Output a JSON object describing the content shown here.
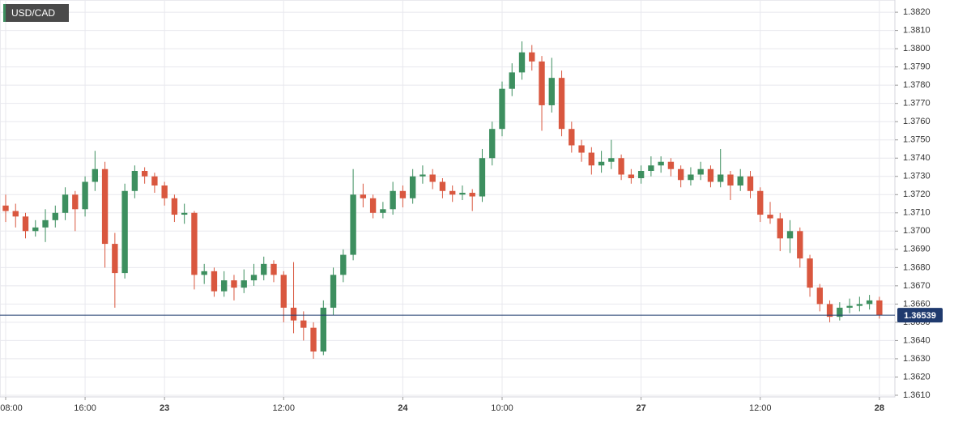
{
  "chart_data": {
    "type": "candlestick",
    "title": "USD/CAD",
    "up_color": "#3d8f5f",
    "down_color": "#d9573f",
    "last_price": 1.36539,
    "last_price_color": "#1f3a6e",
    "grid": true,
    "xlim": [
      -0.57,
      89.56
    ],
    "ylim": [
      1.36091,
      1.38267
    ],
    "xticks": [
      {
        "value": 0,
        "label": "08:00"
      },
      {
        "value": 8,
        "label": "16:00"
      },
      {
        "value": 16,
        "label": "23"
      },
      {
        "value": 28,
        "label": "12:00"
      },
      {
        "value": 40,
        "label": "24"
      },
      {
        "value": 50,
        "label": "10:00"
      },
      {
        "value": 64,
        "label": "27"
      },
      {
        "value": 76,
        "label": "12:00"
      },
      {
        "value": 88,
        "label": "28"
      }
    ],
    "yticks": [
      {
        "value": 1.361,
        "label": "1.3610"
      },
      {
        "value": 1.362,
        "label": "1.3620"
      },
      {
        "value": 1.363,
        "label": "1.3630"
      },
      {
        "value": 1.364,
        "label": "1.3640"
      },
      {
        "value": 1.365,
        "label": "1.3650"
      },
      {
        "value": 1.366,
        "label": "1.3660"
      },
      {
        "value": 1.367,
        "label": "1.3670"
      },
      {
        "value": 1.368,
        "label": "1.3680"
      },
      {
        "value": 1.369,
        "label": "1.3690"
      },
      {
        "value": 1.37,
        "label": "1.3700"
      },
      {
        "value": 1.371,
        "label": "1.3710"
      },
      {
        "value": 1.372,
        "label": "1.3720"
      },
      {
        "value": 1.373,
        "label": "1.3730"
      },
      {
        "value": 1.374,
        "label": "1.3740"
      },
      {
        "value": 1.375,
        "label": "1.3750"
      },
      {
        "value": 1.376,
        "label": "1.3760"
      },
      {
        "value": 1.377,
        "label": "1.3770"
      },
      {
        "value": 1.378,
        "label": "1.3780"
      },
      {
        "value": 1.379,
        "label": "1.3790"
      },
      {
        "value": 1.38,
        "label": "1.3800"
      },
      {
        "value": 1.381,
        "label": "1.3810"
      },
      {
        "value": 1.382,
        "label": "1.3820"
      }
    ],
    "x": [
      0,
      1,
      2,
      3,
      4,
      5,
      6,
      7,
      8,
      9,
      10,
      11,
      12,
      13,
      14,
      15,
      16,
      17,
      18,
      19,
      20,
      21,
      22,
      23,
      24,
      25,
      26,
      27,
      28,
      29,
      30,
      31,
      32,
      33,
      34,
      35,
      36,
      37,
      38,
      39,
      40,
      41,
      42,
      43,
      44,
      45,
      46,
      47,
      48,
      49,
      50,
      51,
      52,
      53,
      54,
      55,
      56,
      57,
      58,
      59,
      60,
      61,
      62,
      63,
      64,
      65,
      66,
      67,
      68,
      69,
      70,
      71,
      72,
      73,
      74,
      75,
      76,
      77,
      78,
      79,
      80,
      81,
      82,
      83,
      84,
      85,
      86,
      87,
      88
    ],
    "open": [
      1.3714,
      1.3711,
      1.3708,
      1.37,
      1.3702,
      1.3706,
      1.371,
      1.372,
      1.3712,
      1.3727,
      1.3734,
      1.3693,
      1.3677,
      1.3722,
      1.3733,
      1.373,
      1.3725,
      1.3718,
      1.3709,
      1.371,
      1.3676,
      1.3678,
      1.3667,
      1.3673,
      1.3669,
      1.3673,
      1.3676,
      1.3682,
      1.3676,
      1.3658,
      1.3651,
      1.3647,
      1.3634,
      1.3658,
      1.3676,
      1.3687,
      1.372,
      1.3718,
      1.371,
      1.3712,
      1.3722,
      1.3718,
      1.373,
      1.3731,
      1.3727,
      1.3722,
      1.372,
      1.3721,
      1.3719,
      1.374,
      1.3756,
      1.3778,
      1.3787,
      1.3798,
      1.3793,
      1.3769,
      1.3784,
      1.3756,
      1.3747,
      1.3743,
      1.3736,
      1.3738,
      1.374,
      1.3731,
      1.3729,
      1.3733,
      1.3736,
      1.3738,
      1.3734,
      1.3728,
      1.3731,
      1.3734,
      1.3727,
      1.3731,
      1.3725,
      1.373,
      1.3722,
      1.3709,
      1.3707,
      1.3696,
      1.37,
      1.3685,
      1.3669,
      1.366,
      1.3653,
      1.3658,
      1.3659,
      1.366,
      1.3662
    ],
    "high": [
      1.372,
      1.3715,
      1.371,
      1.3706,
      1.3712,
      1.3714,
      1.3724,
      1.3722,
      1.373,
      1.3744,
      1.3738,
      1.3699,
      1.3726,
      1.3736,
      1.3735,
      1.3732,
      1.3727,
      1.372,
      1.3715,
      1.3711,
      1.3682,
      1.368,
      1.3678,
      1.3676,
      1.3679,
      1.3682,
      1.3686,
      1.3684,
      1.3678,
      1.3683,
      1.3656,
      1.365,
      1.3662,
      1.368,
      1.369,
      1.3734,
      1.3726,
      1.372,
      1.3716,
      1.3727,
      1.3725,
      1.3734,
      1.3736,
      1.3734,
      1.3729,
      1.3725,
      1.3725,
      1.3723,
      1.3745,
      1.376,
      1.3782,
      1.3792,
      1.3804,
      1.3802,
      1.3796,
      1.3795,
      1.3788,
      1.376,
      1.375,
      1.3746,
      1.3744,
      1.375,
      1.3742,
      1.3734,
      1.3736,
      1.3741,
      1.3741,
      1.374,
      1.3736,
      1.3735,
      1.3738,
      1.3736,
      1.3745,
      1.3733,
      1.3734,
      1.3733,
      1.3724,
      1.3716,
      1.371,
      1.3706,
      1.3702,
      1.3687,
      1.3671,
      1.3662,
      1.3661,
      1.3663,
      1.3664,
      1.3665,
      1.3664
    ],
    "low": [
      1.3705,
      1.3702,
      1.3696,
      1.3697,
      1.3694,
      1.3702,
      1.3706,
      1.37,
      1.3708,
      1.3722,
      1.368,
      1.3658,
      1.3674,
      1.3718,
      1.3726,
      1.3721,
      1.3714,
      1.3705,
      1.3704,
      1.3668,
      1.3671,
      1.3664,
      1.3664,
      1.3662,
      1.3666,
      1.367,
      1.3673,
      1.3672,
      1.365,
      1.3644,
      1.364,
      1.363,
      1.3632,
      1.3654,
      1.3672,
      1.3684,
      1.3713,
      1.3707,
      1.3707,
      1.3709,
      1.3713,
      1.3715,
      1.3726,
      1.3723,
      1.3718,
      1.3716,
      1.3717,
      1.3711,
      1.3716,
      1.3736,
      1.3752,
      1.3774,
      1.3783,
      1.3788,
      1.3755,
      1.3765,
      1.3752,
      1.3743,
      1.3738,
      1.3731,
      1.3732,
      1.3734,
      1.3728,
      1.3726,
      1.3726,
      1.373,
      1.3732,
      1.373,
      1.3724,
      1.3725,
      1.3728,
      1.3724,
      1.3724,
      1.3717,
      1.3722,
      1.3718,
      1.3705,
      1.3704,
      1.3689,
      1.3688,
      1.368,
      1.3664,
      1.3656,
      1.365,
      1.3651,
      1.3655,
      1.3656,
      1.3657,
      1.3652
    ],
    "close": [
      1.3711,
      1.3708,
      1.37,
      1.3702,
      1.3706,
      1.371,
      1.372,
      1.3712,
      1.3727,
      1.3734,
      1.3693,
      1.3677,
      1.3722,
      1.3733,
      1.373,
      1.3725,
      1.3718,
      1.3709,
      1.371,
      1.3676,
      1.3678,
      1.3667,
      1.3673,
      1.3669,
      1.3673,
      1.3676,
      1.3682,
      1.3676,
      1.3658,
      1.3651,
      1.3647,
      1.3634,
      1.3658,
      1.3676,
      1.3687,
      1.372,
      1.3718,
      1.371,
      1.3712,
      1.3722,
      1.3718,
      1.373,
      1.3731,
      1.3727,
      1.3722,
      1.372,
      1.3721,
      1.3719,
      1.374,
      1.3756,
      1.3778,
      1.3787,
      1.3798,
      1.3793,
      1.3769,
      1.3784,
      1.3756,
      1.3747,
      1.3743,
      1.3736,
      1.3738,
      1.374,
      1.3731,
      1.3729,
      1.3733,
      1.3736,
      1.3738,
      1.3734,
      1.3728,
      1.3731,
      1.3734,
      1.3727,
      1.3731,
      1.3725,
      1.373,
      1.3722,
      1.3709,
      1.3707,
      1.3696,
      1.37,
      1.3685,
      1.3669,
      1.366,
      1.3653,
      1.3658,
      1.3659,
      1.366,
      1.3662,
      1.3654
    ]
  }
}
